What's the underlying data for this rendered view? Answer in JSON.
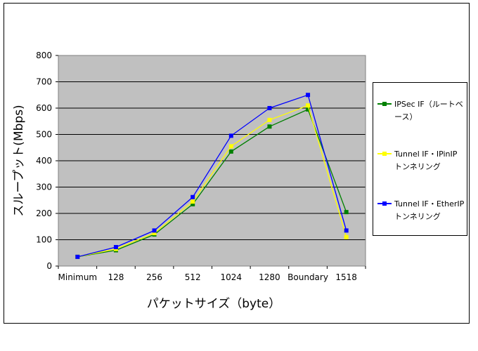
{
  "chart_data": {
    "type": "line",
    "title": "",
    "xlabel": "パケットサイズ（byte）",
    "ylabel": "スループット(Mbps)",
    "categories": [
      "Minimum",
      "128",
      "256",
      "512",
      "1024",
      "1280",
      "Boundary",
      "1518"
    ],
    "ylim": [
      0,
      800
    ],
    "yticks": [
      "0",
      "100",
      "200",
      "300",
      "400",
      "500",
      "600",
      "700",
      "800"
    ],
    "grid": true,
    "legend_position": "right",
    "plot_background": "#c0c0c0",
    "series": [
      {
        "name": "IPSec IF（ルートベース）",
        "color": "#008000",
        "values": [
          35,
          60,
          120,
          235,
          435,
          530,
          595,
          205
        ]
      },
      {
        "name": "Tunnel IF・IPinIPトンネリング",
        "color": "#ffff00",
        "values": [
          35,
          65,
          125,
          245,
          455,
          555,
          610,
          110
        ]
      },
      {
        "name": "Tunnel IF・EtherIPトンネリング",
        "color": "#0000ff",
        "values": [
          35,
          72,
          135,
          262,
          495,
          600,
          650,
          135
        ]
      }
    ]
  }
}
